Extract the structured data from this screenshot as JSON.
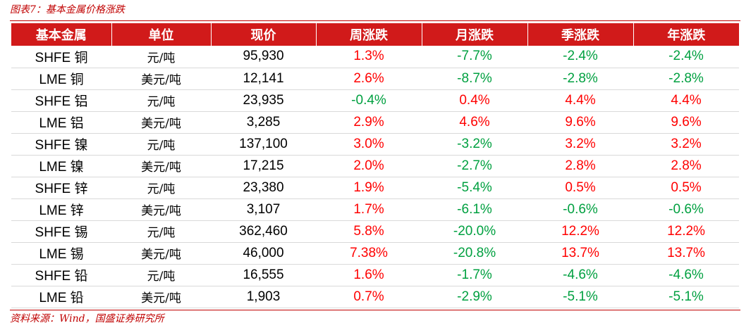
{
  "caption": "图表7：基本金属价格涨跌",
  "source": "资料来源：Wind，国盛证券研究所",
  "colors": {
    "header_bg": "#d11a1a",
    "positive": "#ff0000",
    "negative": "#00a040"
  },
  "table": {
    "headers": [
      "基本金属",
      "单位",
      "现价",
      "周涨跌",
      "月涨跌",
      "季涨跌",
      "年涨跌"
    ],
    "rows": [
      {
        "metal": "SHFE 铜",
        "unit": "元/吨",
        "price": "95,930",
        "week": "1.3%",
        "month": "-7.7%",
        "quarter": "-2.4%",
        "year": "-2.4%"
      },
      {
        "metal": "LME 铜",
        "unit": "美元/吨",
        "price": "12,141",
        "week": "2.6%",
        "month": "-8.7%",
        "quarter": "-2.8%",
        "year": "-2.8%"
      },
      {
        "metal": "SHFE 铝",
        "unit": "元/吨",
        "price": "23,935",
        "week": "-0.4%",
        "month": "0.4%",
        "quarter": "4.4%",
        "year": "4.4%"
      },
      {
        "metal": "LME 铝",
        "unit": "美元/吨",
        "price": "3,285",
        "week": "2.9%",
        "month": "4.6%",
        "quarter": "9.6%",
        "year": "9.6%"
      },
      {
        "metal": "SHFE 镍",
        "unit": "元/吨",
        "price": "137,100",
        "week": "3.0%",
        "month": "-3.2%",
        "quarter": "3.2%",
        "year": "3.2%"
      },
      {
        "metal": "LME 镍",
        "unit": "美元/吨",
        "price": "17,215",
        "week": "2.0%",
        "month": "-2.7%",
        "quarter": "2.8%",
        "year": "2.8%"
      },
      {
        "metal": "SHFE 锌",
        "unit": "元/吨",
        "price": "23,380",
        "week": "1.9%",
        "month": "-5.4%",
        "quarter": "0.5%",
        "year": "0.5%"
      },
      {
        "metal": "LME 锌",
        "unit": "美元/吨",
        "price": "3,107",
        "week": "1.7%",
        "month": "-6.1%",
        "quarter": "-0.6%",
        "year": "-0.6%"
      },
      {
        "metal": "SHFE 锡",
        "unit": "元/吨",
        "price": "362,460",
        "week": "5.8%",
        "month": "-20.0%",
        "quarter": "12.2%",
        "year": "12.2%"
      },
      {
        "metal": "LME 锡",
        "unit": "美元/吨",
        "price": "46,000",
        "week": "7.38%",
        "month": "-20.8%",
        "quarter": "13.7%",
        "year": "13.7%"
      },
      {
        "metal": "SHFE 铅",
        "unit": "元/吨",
        "price": "16,555",
        "week": "1.6%",
        "month": "-1.7%",
        "quarter": "-4.6%",
        "year": "-4.6%"
      },
      {
        "metal": "LME 铅",
        "unit": "美元/吨",
        "price": "1,903",
        "week": "0.7%",
        "month": "-2.9%",
        "quarter": "-5.1%",
        "year": "-5.1%"
      }
    ]
  }
}
